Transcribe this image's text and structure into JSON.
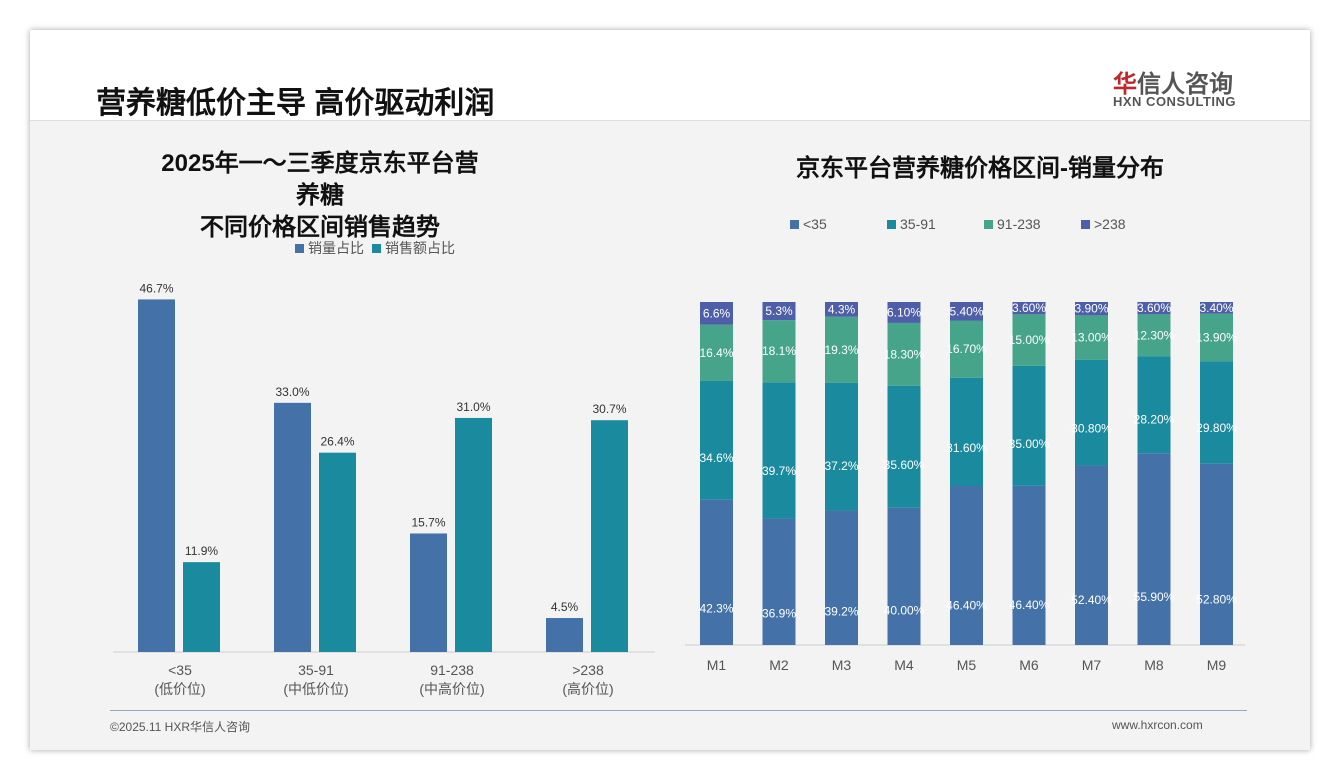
{
  "header": {
    "title": "营养糖低价主导 高价驱动利润",
    "logo_cn_red": "华",
    "logo_cn": "信人咨询",
    "logo_en": "HXN CONSULTING"
  },
  "footer": {
    "copyright": "©2025.11 HXR华信人咨询",
    "url": "www.hxrcon.com"
  },
  "colors": {
    "blue": "#4472a8",
    "teal": "#1a8a9e",
    "green": "#45a48a",
    "purple": "#4e5ea8"
  },
  "chart_data": [
    {
      "type": "bar",
      "title_line1": "2025年一～三季度京东平台营养糖",
      "title_line2": "不同价格区间销售趋势",
      "categories": [
        "<35",
        "35-91",
        "91-238",
        ">238"
      ],
      "category_sub": [
        "(低价位)",
        "(中低价位)",
        "(中高价位)",
        "(高价位)"
      ],
      "series": [
        {
          "name": "销量占比",
          "values": [
            46.7,
            33.0,
            15.7,
            4.5
          ]
        },
        {
          "name": "销售额占比",
          "values": [
            11.9,
            26.4,
            31.0,
            30.7
          ]
        }
      ],
      "ylim": [
        0,
        50
      ],
      "legend": "top"
    },
    {
      "type": "bar",
      "stacked": true,
      "title": "京东平台营养糖价格区间-销量分布",
      "categories": [
        "M1",
        "M2",
        "M3",
        "M4",
        "M5",
        "M6",
        "M7",
        "M8",
        "M9"
      ],
      "series": [
        {
          "name": "<35",
          "values": [
            42.3,
            36.9,
            39.2,
            40.0,
            46.4,
            46.4,
            52.4,
            55.9,
            52.8
          ],
          "labels": [
            "42.3%",
            "36.9%",
            "39.2%",
            "40.00%",
            "46.40%",
            "46.40%",
            "52.40%",
            "55.90%",
            "52.80%"
          ]
        },
        {
          "name": "35-91",
          "values": [
            34.6,
            39.7,
            37.2,
            35.6,
            31.6,
            35.0,
            30.8,
            28.2,
            29.8
          ],
          "labels": [
            "34.6%",
            "39.7%",
            "37.2%",
            "35.60%",
            "31.60%",
            "35.00%",
            "30.80%",
            "28.20%",
            "29.80%"
          ]
        },
        {
          "name": "91-238",
          "values": [
            16.4,
            18.1,
            19.3,
            18.3,
            16.7,
            15.0,
            13.0,
            12.3,
            13.9
          ],
          "labels": [
            "16.4%",
            "18.1%",
            "19.3%",
            "18.30%",
            "16.70%",
            "15.00%",
            "13.00%",
            "12.30%",
            "13.90%"
          ]
        },
        {
          "name": ">238",
          "values": [
            6.6,
            5.3,
            4.3,
            6.1,
            5.4,
            3.6,
            3.9,
            3.6,
            3.4
          ],
          "labels": [
            "6.6%",
            "5.3%",
            "4.3%",
            "6.10%",
            "5.40%",
            "3.60%",
            "3.90%",
            "3.60%",
            "3.40%"
          ]
        }
      ],
      "ylim": [
        0,
        100
      ],
      "legend": "top"
    }
  ]
}
